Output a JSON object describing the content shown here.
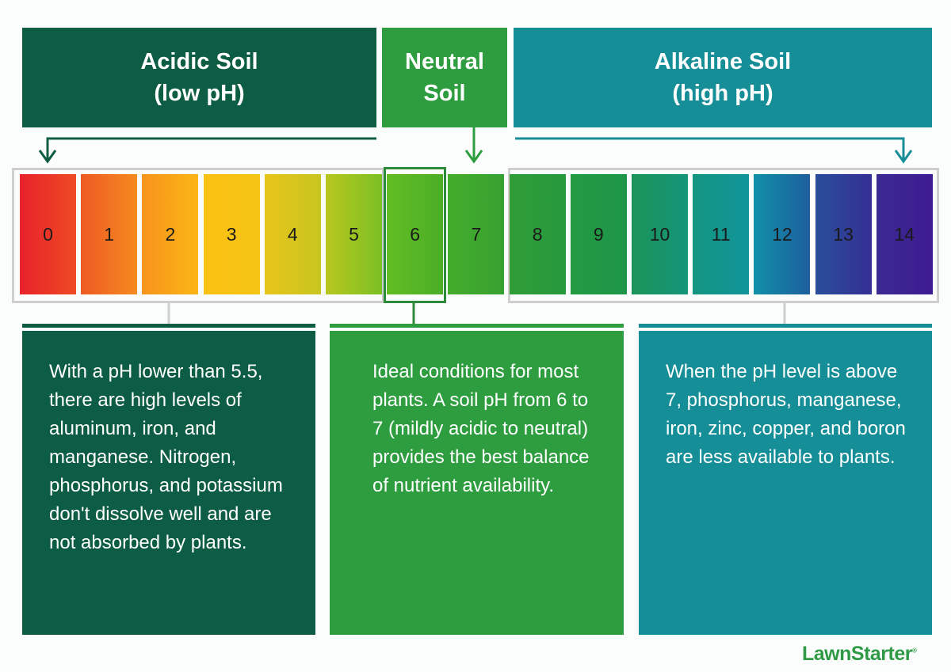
{
  "headers": {
    "acidic": {
      "line1": "Acidic Soil",
      "line2": "(low pH)"
    },
    "neutral": {
      "line1": "Neutral",
      "line2": "Soil"
    },
    "alkaline": {
      "line1": "Alkaline Soil",
      "line2": "(high pH)"
    }
  },
  "scale": {
    "values": [
      "0",
      "1",
      "2",
      "3",
      "4",
      "5",
      "6",
      "7",
      "8",
      "9",
      "10",
      "11",
      "12",
      "13",
      "14"
    ],
    "highlighted": "6",
    "colors": [
      [
        "#e8222a",
        "#ee4a24"
      ],
      [
        "#ee5a24",
        "#f58a1f"
      ],
      [
        "#f7941d",
        "#fbb515"
      ],
      [
        "#fbc112",
        "#f5c516"
      ],
      [
        "#e8c51a",
        "#c7c520"
      ],
      [
        "#b8c71f",
        "#7cc024"
      ],
      [
        "#62bd22",
        "#4cae28"
      ],
      [
        "#44ad2c",
        "#38a030"
      ],
      [
        "#2f9c36",
        "#279a3e"
      ],
      [
        "#239a42",
        "#1d9548"
      ],
      [
        "#1a9458",
        "#16957a"
      ],
      [
        "#149580",
        "#11959a"
      ],
      [
        "#1190a8",
        "#1e5f9e"
      ],
      [
        "#2a4e9a",
        "#342f94"
      ],
      [
        "#3b2a93",
        "#3e1b92"
      ]
    ]
  },
  "descriptions": {
    "acidic": "With a pH lower than 5.5, there are high levels of aluminum, iron, and manganese. Nitrogen, phosphorus, and potassium don't dissolve well and are not absorbed by plants.",
    "neutral": "Ideal conditions for most plants. A soil pH from 6 to 7 (mildly acidic to neutral) provides the best balance of nutrient availability.",
    "alkaline": "When the pH level is above 7, phosphorus, manganese, iron, zinc, copper, and boron are less available to plants."
  },
  "colors": {
    "acidic": "#0d5c44",
    "neutral": "#2e9d3f",
    "alkaline": "#168e98",
    "frame": "#cfcfcf"
  },
  "logo": "LawnStarter"
}
